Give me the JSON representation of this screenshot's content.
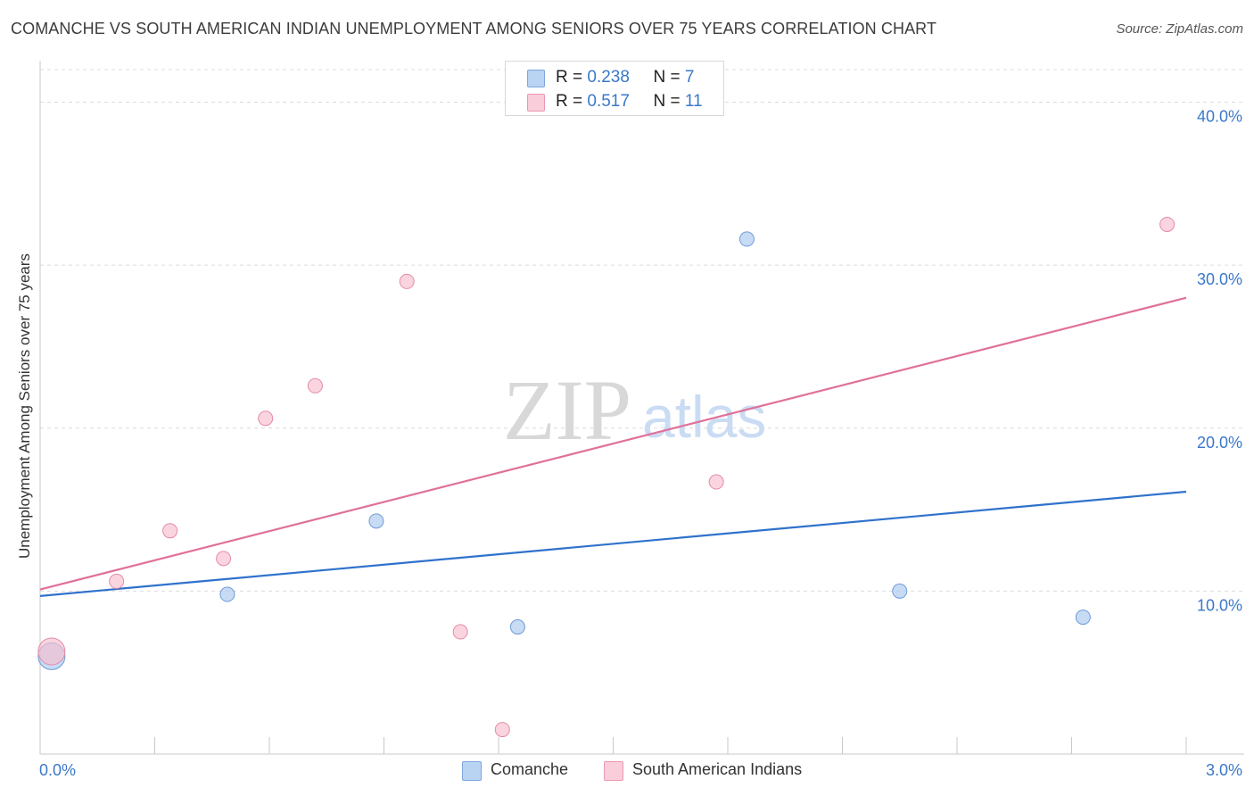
{
  "title": "COMANCHE VS SOUTH AMERICAN INDIAN UNEMPLOYMENT AMONG SENIORS OVER 75 YEARS CORRELATION CHART",
  "source": "Source: ZipAtlas.com",
  "watermark": {
    "zip": "ZIP",
    "atlas": "atlas"
  },
  "legend": {
    "rows": [
      {
        "r_label": "R = ",
        "r_value": "0.238",
        "n_label": "N = ",
        "n_value": "7"
      },
      {
        "r_label": "R = ",
        "r_value": "0.517",
        "n_label": "N = ",
        "n_value": "11"
      }
    ]
  },
  "chart_data": {
    "type": "scatter",
    "title": "COMANCHE VS SOUTH AMERICAN INDIAN UNEMPLOYMENT AMONG SENIORS OVER 75 YEARS CORRELATION CHART",
    "xlabel": "",
    "ylabel": "Unemployment Among Seniors over 75 years",
    "xlim": [
      0,
      3.0
    ],
    "ylim": [
      0,
      42
    ],
    "x_tick_labels": [
      "0.0%",
      "3.0%"
    ],
    "y_ticks": [
      10,
      20,
      30,
      40
    ],
    "y_tick_labels": [
      "10.0%",
      "20.0%",
      "30.0%",
      "40.0%"
    ],
    "grid": true,
    "legend_position": "top-center",
    "series": [
      {
        "name": "Comanche",
        "color": "#a9c8f0",
        "stroke": "#6f9ad6",
        "line_color": "#2f72cc",
        "points": [
          {
            "x": 0.03,
            "y": 6.0,
            "size": "large"
          },
          {
            "x": 0.49,
            "y": 9.8
          },
          {
            "x": 0.88,
            "y": 14.3
          },
          {
            "x": 1.25,
            "y": 7.8
          },
          {
            "x": 1.85,
            "y": 31.6
          },
          {
            "x": 2.25,
            "y": 10.0
          },
          {
            "x": 2.73,
            "y": 8.4
          }
        ],
        "trend": {
          "x": [
            0,
            3.0
          ],
          "y": [
            9.7,
            16.1
          ]
        }
      },
      {
        "name": "South American Indians",
        "color": "#f7bfcf",
        "stroke": "#e58aa6",
        "line_color": "#e0709a",
        "points": [
          {
            "x": 0.03,
            "y": 6.3,
            "size": "large"
          },
          {
            "x": 0.2,
            "y": 10.6
          },
          {
            "x": 0.34,
            "y": 13.7
          },
          {
            "x": 0.48,
            "y": 12.0
          },
          {
            "x": 0.59,
            "y": 20.6
          },
          {
            "x": 0.72,
            "y": 22.6
          },
          {
            "x": 0.96,
            "y": 29.0
          },
          {
            "x": 1.1,
            "y": 7.5
          },
          {
            "x": 1.21,
            "y": 1.5
          },
          {
            "x": 1.77,
            "y": 16.7
          },
          {
            "x": 2.95,
            "y": 32.5
          }
        ],
        "trend": {
          "x": [
            0,
            3.0
          ],
          "y": [
            10.1,
            28.0
          ]
        }
      }
    ]
  }
}
